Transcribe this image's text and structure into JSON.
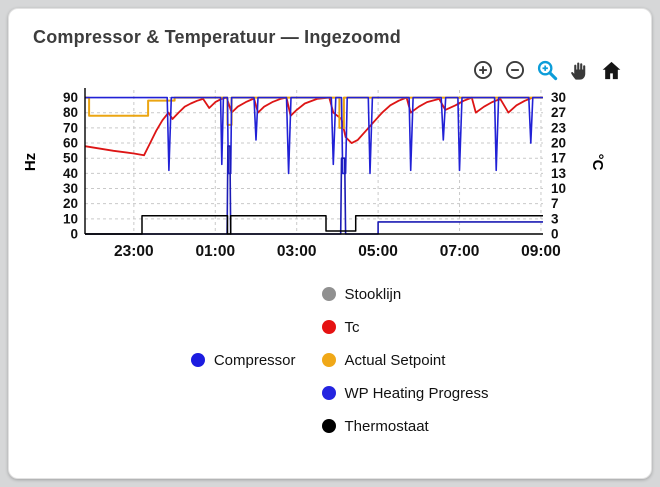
{
  "card": {
    "title": "Compressor & Temperatuur — Ingezoomd"
  },
  "toolbar": {
    "buttons": [
      {
        "name": "zoom-in-icon"
      },
      {
        "name": "zoom-out-icon"
      },
      {
        "name": "box-zoom-icon",
        "accent": "#0c9dd9"
      },
      {
        "name": "pan-hand-icon"
      },
      {
        "name": "home-icon"
      }
    ]
  },
  "chart_data": {
    "type": "line",
    "x_range": [
      21.8,
      33.05
    ],
    "x_ticks": [
      {
        "v": 23,
        "label": "23:00"
      },
      {
        "v": 25,
        "label": "01:00"
      },
      {
        "v": 27,
        "label": "03:00"
      },
      {
        "v": 29,
        "label": "05:00"
      },
      {
        "v": 31,
        "label": "07:00"
      },
      {
        "v": 33,
        "label": "09:00"
      }
    ],
    "left_axis": {
      "label": "Hz",
      "range": [
        0,
        95
      ],
      "ticks": [
        0,
        10,
        20,
        30,
        40,
        50,
        60,
        70,
        80,
        90
      ]
    },
    "right_axis": {
      "label": "°C",
      "ticks": [
        {
          "at": 0,
          "label": "0"
        },
        {
          "at": 10,
          "label": "3"
        },
        {
          "at": 20,
          "label": "7"
        },
        {
          "at": 30,
          "label": "10"
        },
        {
          "at": 40,
          "label": "13"
        },
        {
          "at": 50,
          "label": "17"
        },
        {
          "at": 60,
          "label": "20"
        },
        {
          "at": 70,
          "label": "23"
        },
        {
          "at": 80,
          "label": "27"
        },
        {
          "at": 90,
          "label": "30"
        }
      ]
    },
    "grid": true,
    "series": [
      {
        "name": "Stooklijn",
        "color": "#909090",
        "axis": "left",
        "width": 1.5,
        "points": []
      },
      {
        "name": "Tc",
        "color": "#dd1515",
        "axis": "right",
        "width": 1.8,
        "points": [
          [
            21.8,
            19.3
          ],
          [
            22.5,
            18.3
          ],
          [
            23.0,
            17.7
          ],
          [
            23.25,
            17.3
          ],
          [
            23.4,
            20
          ],
          [
            23.55,
            22.7
          ],
          [
            23.7,
            25
          ],
          [
            23.85,
            26.7
          ],
          [
            23.95,
            25.3
          ],
          [
            24.1,
            26.7
          ],
          [
            24.25,
            28
          ],
          [
            24.4,
            28.7
          ],
          [
            24.55,
            29.3
          ],
          [
            24.7,
            29.7
          ],
          [
            24.85,
            27.7
          ],
          [
            25.0,
            29
          ],
          [
            25.15,
            29.7
          ],
          [
            25.28,
            30
          ],
          [
            25.4,
            26.7
          ],
          [
            25.55,
            28
          ],
          [
            25.75,
            29
          ],
          [
            25.95,
            29.8
          ],
          [
            26.05,
            26.7
          ],
          [
            26.2,
            28
          ],
          [
            26.4,
            29
          ],
          [
            26.6,
            29.7
          ],
          [
            26.75,
            30
          ],
          [
            26.85,
            26
          ],
          [
            27.0,
            27.3
          ],
          [
            27.2,
            28.7
          ],
          [
            27.5,
            29.7
          ],
          [
            27.8,
            30
          ],
          [
            27.9,
            26.7
          ],
          [
            28.1,
            25.3
          ],
          [
            28.2,
            21.3
          ],
          [
            28.35,
            20
          ],
          [
            28.5,
            20.7
          ],
          [
            28.7,
            22.7
          ],
          [
            28.9,
            24.7
          ],
          [
            29.1,
            26.7
          ],
          [
            29.3,
            28.3
          ],
          [
            29.5,
            29.3
          ],
          [
            29.7,
            30
          ],
          [
            29.8,
            26.7
          ],
          [
            30.0,
            28
          ],
          [
            30.2,
            29
          ],
          [
            30.5,
            29.7
          ],
          [
            30.65,
            27.3
          ],
          [
            30.9,
            28.3
          ],
          [
            31.1,
            29.3
          ],
          [
            31.3,
            30
          ],
          [
            31.4,
            26.7
          ],
          [
            31.6,
            28
          ],
          [
            31.8,
            29
          ],
          [
            32.0,
            29.7
          ],
          [
            32.2,
            26.7
          ],
          [
            32.4,
            28.3
          ],
          [
            32.6,
            29.3
          ],
          [
            32.8,
            30
          ],
          [
            33.05,
            30
          ]
        ]
      },
      {
        "name": "Actual Setpoint",
        "color": "#eba512",
        "axis": "left",
        "width": 2,
        "points": [
          [
            21.8,
            90
          ],
          [
            21.9,
            90
          ],
          [
            21.9,
            78
          ],
          [
            23.35,
            78
          ],
          [
            23.35,
            88
          ],
          [
            24.0,
            88
          ],
          [
            24.0,
            90
          ],
          [
            25.3,
            90
          ],
          [
            25.3,
            72
          ],
          [
            25.4,
            72
          ],
          [
            25.4,
            90
          ],
          [
            28.05,
            90
          ],
          [
            28.05,
            70
          ],
          [
            28.16,
            70
          ],
          [
            28.16,
            90
          ],
          [
            33.05,
            90
          ]
        ]
      },
      {
        "name": "Compressor",
        "color": "#2121d6",
        "axis": "left",
        "width": 1.6,
        "points": [
          [
            21.8,
            90
          ],
          [
            23.82,
            90
          ],
          [
            23.86,
            42
          ],
          [
            23.92,
            90
          ],
          [
            25.13,
            90
          ],
          [
            25.16,
            46
          ],
          [
            25.2,
            90
          ],
          [
            25.3,
            90
          ],
          [
            25.32,
            40
          ],
          [
            25.38,
            40
          ],
          [
            25.4,
            90
          ],
          [
            25.95,
            90
          ],
          [
            26.0,
            62
          ],
          [
            26.05,
            90
          ],
          [
            26.75,
            90
          ],
          [
            26.8,
            40
          ],
          [
            26.86,
            90
          ],
          [
            27.85,
            90
          ],
          [
            27.9,
            46
          ],
          [
            27.96,
            90
          ],
          [
            28.1,
            90
          ],
          [
            28.13,
            40
          ],
          [
            28.2,
            40
          ],
          [
            28.24,
            90
          ],
          [
            28.76,
            90
          ],
          [
            28.8,
            40
          ],
          [
            28.86,
            90
          ],
          [
            29.76,
            90
          ],
          [
            29.8,
            42
          ],
          [
            29.86,
            90
          ],
          [
            30.55,
            90
          ],
          [
            30.6,
            62
          ],
          [
            30.66,
            90
          ],
          [
            30.96,
            90
          ],
          [
            31.0,
            42
          ],
          [
            31.06,
            90
          ],
          [
            31.86,
            90
          ],
          [
            31.9,
            42
          ],
          [
            31.96,
            90
          ],
          [
            32.7,
            90
          ],
          [
            32.75,
            60
          ],
          [
            32.8,
            90
          ],
          [
            33.05,
            90
          ]
        ]
      },
      {
        "name": "WP Heating Progress",
        "color": "#1b1bb4",
        "axis": "left",
        "width": 1.6,
        "points": [
          [
            21.8,
            0
          ],
          [
            25.29,
            0
          ],
          [
            25.31,
            58
          ],
          [
            25.36,
            58
          ],
          [
            25.38,
            0
          ],
          [
            28.08,
            0
          ],
          [
            28.1,
            50
          ],
          [
            28.18,
            50
          ],
          [
            28.2,
            0
          ],
          [
            29.0,
            0
          ],
          [
            29.0,
            8
          ],
          [
            33.05,
            8
          ]
        ]
      },
      {
        "name": "Thermostaat",
        "color": "#000000",
        "axis": "left",
        "width": 1.5,
        "points": [
          [
            21.8,
            0
          ],
          [
            23.2,
            0
          ],
          [
            23.2,
            12
          ],
          [
            25.3,
            12
          ],
          [
            25.3,
            0
          ],
          [
            25.38,
            0
          ],
          [
            25.38,
            12
          ],
          [
            27.72,
            12
          ],
          [
            27.72,
            2
          ],
          [
            28.45,
            2
          ],
          [
            28.45,
            12
          ],
          [
            33.05,
            12
          ]
        ]
      }
    ]
  },
  "legend": {
    "items": [
      {
        "label": "Stooklijn",
        "color": "#909090",
        "row": 1,
        "col": 2
      },
      {
        "label": "Tc",
        "color": "#e51212",
        "row": 2,
        "col": 2
      },
      {
        "label": "Compressor",
        "color": "#1c1ce0",
        "row": 3,
        "col": 1
      },
      {
        "label": "Actual Setpoint",
        "color": "#f0a818",
        "row": 3,
        "col": 2
      },
      {
        "label": "WP Heating Progress",
        "color": "#2424e0",
        "row": 4,
        "col": 2
      },
      {
        "label": "Thermostaat",
        "color": "#000000",
        "row": 5,
        "col": 2
      }
    ]
  }
}
